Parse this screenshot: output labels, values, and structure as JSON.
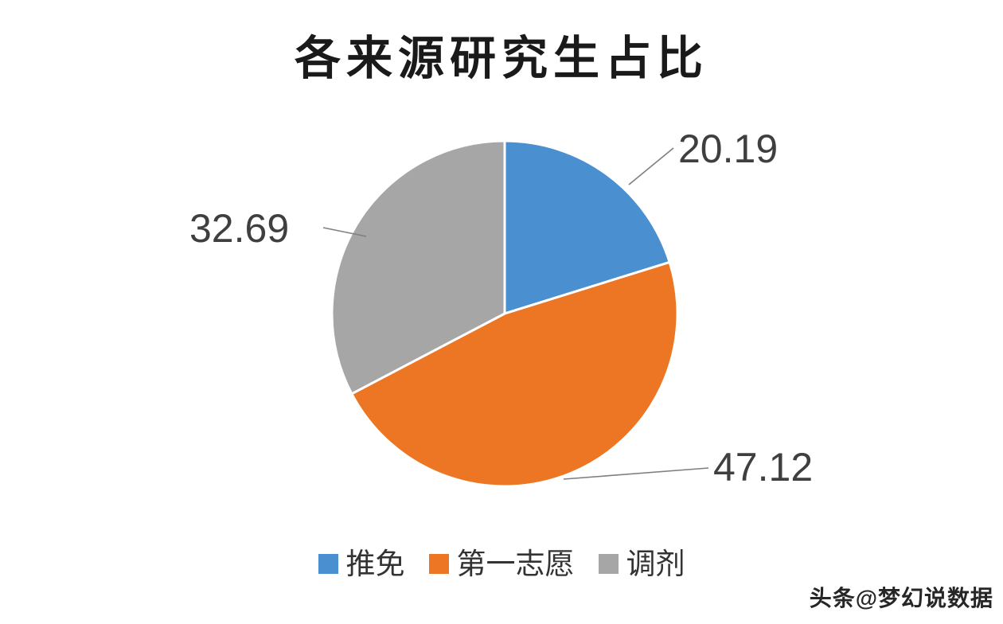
{
  "chart_data": {
    "type": "pie",
    "title": "各来源研究生占比",
    "categories": [
      "推免",
      "第一志愿",
      "调剂"
    ],
    "values": [
      20.19,
      47.12,
      32.69
    ],
    "labels": [
      "20.19",
      "47.12",
      "32.69"
    ],
    "colors": [
      "#4A90D0",
      "#EC7623",
      "#A6A6A6"
    ],
    "legend_position": "bottom",
    "start_angle_deg": 0,
    "label_line_color": "#7f7f7f",
    "slice_border_color": "#ffffff"
  },
  "watermark": "头条@梦幻说数据"
}
